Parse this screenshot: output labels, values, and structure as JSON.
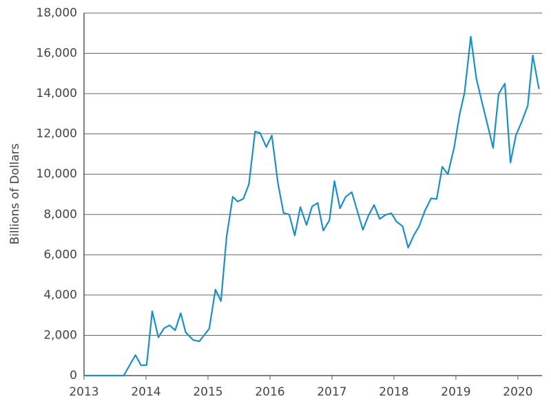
{
  "chart_data": {
    "type": "line",
    "y_label": "Billions of Dollars",
    "x": [
      2013.0,
      2013.09,
      2013.19,
      2013.28,
      2013.37,
      2013.46,
      2013.56,
      2013.64,
      2013.83,
      2013.92,
      2014.01,
      2014.1,
      2014.2,
      2014.29,
      2014.38,
      2014.47,
      2014.56,
      2014.64,
      2014.76,
      2014.86,
      2014.93,
      2015.02,
      2015.12,
      2015.21,
      2015.3,
      2015.4,
      2015.48,
      2015.57,
      2015.66,
      2015.76,
      2015.84,
      2015.94,
      2016.03,
      2016.13,
      2016.22,
      2016.31,
      2016.4,
      2016.49,
      2016.59,
      2016.68,
      2016.77,
      2016.86,
      2016.96,
      2017.04,
      2017.13,
      2017.22,
      2017.32,
      2017.41,
      2017.5,
      2017.59,
      2017.68,
      2017.77,
      2017.87,
      2017.96,
      2018.04,
      2018.14,
      2018.23,
      2018.32,
      2018.41,
      2018.5,
      2018.6,
      2018.69,
      2018.78,
      2018.87,
      2018.97,
      2019.06,
      2019.14,
      2019.24,
      2019.33,
      2019.42,
      2019.51,
      2019.6,
      2019.69,
      2019.79,
      2019.88,
      2019.97,
      2020.06,
      2020.16,
      2020.24,
      2020.34
    ],
    "series": [
      {
        "color": "#1a8fc4",
        "values": [
          0,
          0,
          0,
          0,
          0,
          0,
          0,
          0,
          1020,
          510,
          520,
          3200,
          1900,
          2350,
          2500,
          2250,
          3100,
          2150,
          1770,
          1700,
          1980,
          2330,
          4270,
          3700,
          6900,
          8880,
          8640,
          8780,
          9500,
          12120,
          12050,
          11350,
          11920,
          9530,
          8070,
          8000,
          6960,
          8370,
          7480,
          8400,
          8570,
          7200,
          7720,
          9660,
          8300,
          8870,
          9110,
          8160,
          7240,
          7950,
          8470,
          7780,
          7990,
          8060,
          7650,
          7410,
          6350,
          6960,
          7440,
          8190,
          8800,
          8770,
          10370,
          10000,
          11300,
          12970,
          14060,
          16830,
          14750,
          13580,
          12460,
          11300,
          13990,
          14500,
          10580,
          11950,
          12590,
          13410,
          15900,
          14230
        ]
      }
    ],
    "xlim": [
      2013,
      2020.39
    ],
    "xticks": [
      2013,
      2014,
      2015,
      2016,
      2017,
      2018,
      2019,
      2020
    ],
    "ylim": [
      0,
      18000
    ],
    "yticks": [
      0,
      {
        "value": 2000,
        "label": "2,000"
      },
      {
        "value": 4000,
        "label": "4,000"
      },
      {
        "value": 6000,
        "label": "6,000"
      },
      {
        "value": 8000,
        "label": "8,000"
      },
      {
        "value": 10000,
        "label": "10,000"
      },
      {
        "value": 12000,
        "label": "12,000"
      },
      {
        "value": 14000,
        "label": "14,000"
      },
      {
        "value": 16000,
        "label": "16,000"
      },
      {
        "value": 18000,
        "label": "18,000"
      }
    ],
    "grid": true
  }
}
